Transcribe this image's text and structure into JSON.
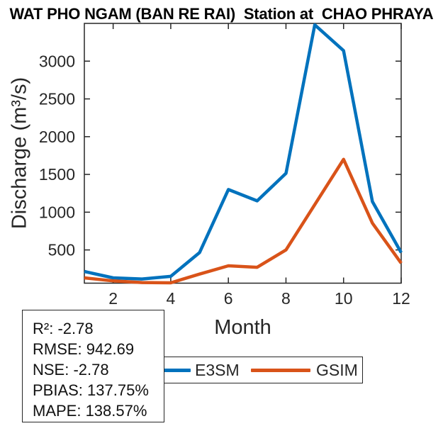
{
  "chart_data": {
    "type": "line",
    "title": "WAT PHO NGAM (BAN RE RAI)  Station at  CHAO PHRAYA",
    "xlabel": "Month",
    "ylabel": "Discharge (m³/s)",
    "x": [
      1,
      2,
      3,
      4,
      5,
      6,
      7,
      8,
      9,
      10,
      11,
      12
    ],
    "series": [
      {
        "name": "E3SM",
        "color": "#0072BD",
        "values": [
          215,
          130,
          115,
          150,
          465,
          1300,
          1150,
          1515,
          3480,
          3140,
          1140,
          465
        ]
      },
      {
        "name": "GSIM",
        "color": "#D95319",
        "values": [
          130,
          90,
          68,
          65,
          180,
          290,
          270,
          500,
          1100,
          1700,
          855,
          325
        ]
      }
    ],
    "xlim": [
      1,
      12
    ],
    "ylim": [
      60,
      3500
    ],
    "xticks": [
      2,
      4,
      6,
      8,
      10,
      12
    ],
    "yticks": [
      500,
      1000,
      1500,
      2000,
      2500,
      3000
    ],
    "grid": false,
    "legend_position": "below-plot-horizontal",
    "axis_color": "#262626"
  },
  "stats_box": {
    "lines": [
      "R²: -2.78",
      "RMSE: 942.69",
      "NSE: -2.78",
      "PBIAS: 137.75%",
      "MAPE: 138.57%"
    ]
  }
}
